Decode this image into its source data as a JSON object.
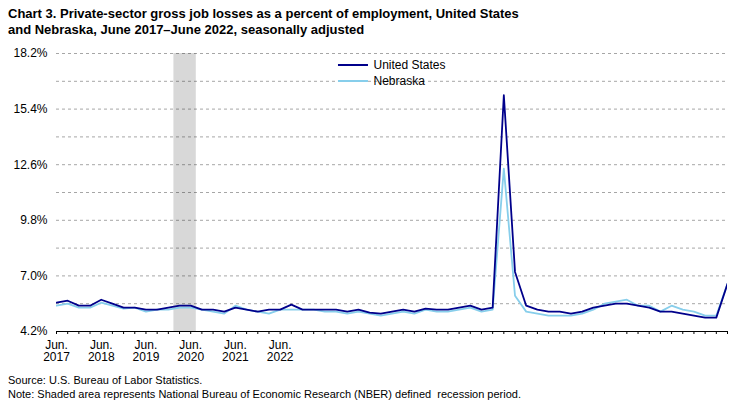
{
  "chart_data": {
    "type": "line",
    "title": "Chart 3. Private-sector gross job losses as a percent of employment, United States\nand Nebraska, June 2017–June 2022, seasonally adjusted",
    "source": "Source: U.S. Bureau of Labor Statistics.",
    "note": "Note: Shaded area represents National Bureau of Economic Research (NBER) defined  recession period.",
    "categories": [
      "Jun.\n2017",
      null,
      null,
      null,
      "Jun.\n2018",
      null,
      null,
      null,
      "Jun.\n2019",
      null,
      null,
      null,
      "Jun.\n2020",
      null,
      null,
      null,
      "Jun.\n2021",
      null,
      null,
      null,
      "Jun.\n2022",
      null,
      null,
      null,
      null,
      null,
      null,
      null,
      null,
      null,
      null,
      null,
      null,
      null,
      null,
      null,
      null,
      null,
      null,
      null,
      null,
      null,
      null,
      null,
      null,
      null,
      null,
      null,
      null,
      null,
      null,
      null,
      null,
      null,
      null,
      null,
      null,
      null,
      null,
      null,
      null
    ],
    "series": [
      {
        "name": "United States",
        "color": "#00008B",
        "values": [
          5.65,
          5.75,
          5.5,
          5.5,
          5.8,
          5.6,
          5.4,
          5.4,
          5.3,
          5.3,
          5.4,
          5.5,
          5.5,
          5.3,
          5.3,
          5.2,
          5.4,
          5.3,
          5.2,
          5.3,
          5.3,
          5.55,
          5.3,
          5.3,
          5.3,
          5.3,
          5.2,
          5.3,
          5.15,
          5.1,
          5.2,
          5.3,
          5.2,
          5.35,
          5.3,
          5.3,
          5.4,
          5.5,
          5.3,
          5.4,
          16.1,
          7.2,
          5.5,
          5.3,
          5.2,
          5.2,
          5.1,
          5.2,
          5.4,
          5.5,
          5.6,
          5.6,
          5.5,
          5.4,
          5.2,
          5.2,
          5.1,
          5.0,
          4.9,
          4.9,
          6.6
        ]
      },
      {
        "name": "Nebraska",
        "color": "#87CEEB",
        "values": [
          5.5,
          5.6,
          5.4,
          5.4,
          5.65,
          5.5,
          5.35,
          5.4,
          5.2,
          5.3,
          5.3,
          5.4,
          5.4,
          5.3,
          5.2,
          5.1,
          5.5,
          5.3,
          5.2,
          5.1,
          5.3,
          5.3,
          5.3,
          5.3,
          5.2,
          5.2,
          5.1,
          5.2,
          5.1,
          5.0,
          5.1,
          5.2,
          5.1,
          5.3,
          5.2,
          5.2,
          5.3,
          5.4,
          5.2,
          5.3,
          12.4,
          6.0,
          5.2,
          5.1,
          5.0,
          5.0,
          5.0,
          5.1,
          5.3,
          5.6,
          5.7,
          5.8,
          5.5,
          5.5,
          5.2,
          5.5,
          5.3,
          5.2,
          5.0,
          5.0,
          6.6
        ]
      }
    ],
    "ylim": [
      4.2,
      18.2
    ],
    "yticks": [
      {
        "value": 4.2,
        "label": "4.2%"
      },
      {
        "value": 5.6,
        "label": null
      },
      {
        "value": 7.0,
        "label": "7.0%"
      },
      {
        "value": 8.4,
        "label": null
      },
      {
        "value": 9.8,
        "label": "9.8%"
      },
      {
        "value": 11.2,
        "label": null
      },
      {
        "value": 12.6,
        "label": "12.6%"
      },
      {
        "value": 14.0,
        "label": null
      },
      {
        "value": 15.4,
        "label": "15.4%"
      },
      {
        "value": 16.8,
        "label": null
      },
      {
        "value": 18.2,
        "label": "18.2%"
      }
    ],
    "grid": true,
    "legend": "upper center",
    "shaded_span": {
      "from": 10.5,
      "to": 12.5,
      "color": "#d8d8d8"
    }
  }
}
